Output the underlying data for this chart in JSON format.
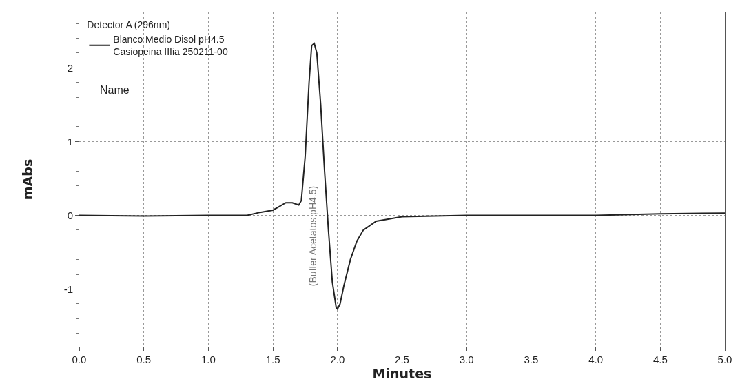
{
  "chart_data": {
    "type": "line",
    "xlabel": "Minutes",
    "ylabel": "mAbs",
    "legend_title": "Detector A (296nm)",
    "xlim": [
      0,
      5
    ],
    "xticks": [
      {
        "value": 0,
        "label": "0.0"
      },
      {
        "value": 0.5,
        "label": "0.5"
      },
      {
        "value": 1,
        "label": "1.0"
      },
      {
        "value": 1.5,
        "label": "1.5"
      },
      {
        "value": 2,
        "label": "2.0"
      },
      {
        "value": 2.5,
        "label": "2.5"
      },
      {
        "value": 3,
        "label": "3.0"
      },
      {
        "value": 3.5,
        "label": "3.5"
      },
      {
        "value": 4,
        "label": "4.0"
      },
      {
        "value": 4.5,
        "label": "4.5"
      },
      {
        "value": 5,
        "label": "5.0"
      }
    ],
    "ylim": [
      -1.78,
      2.75
    ],
    "yticks": [
      -1,
      0,
      1,
      2
    ],
    "grid": true,
    "legend": "top left",
    "line_style": "solid",
    "marker": "none",
    "x": [
      0,
      0.5,
      1.0,
      1.3,
      1.4,
      1.5,
      1.55,
      1.6,
      1.65,
      1.7,
      1.72,
      1.75,
      1.78,
      1.8,
      1.82,
      1.84,
      1.87,
      1.9,
      1.93,
      1.96,
      1.99,
      2.0,
      2.02,
      2.05,
      2.1,
      2.15,
      2.2,
      2.3,
      2.5,
      3.0,
      4.0,
      4.5,
      5.0
    ],
    "series": [
      {
        "name": "Blanco Medio Disol pH4.5\nCasiopeina IIIia 250211-00",
        "color": "#222222",
        "values": [
          0,
          -0.01,
          0,
          0,
          0.04,
          0.07,
          0.12,
          0.17,
          0.17,
          0.14,
          0.2,
          0.8,
          1.8,
          2.3,
          2.33,
          2.2,
          1.5,
          0.6,
          -0.2,
          -0.9,
          -1.25,
          -1.27,
          -1.2,
          -0.95,
          -0.6,
          -0.35,
          -0.2,
          -0.08,
          -0.02,
          0,
          0,
          0.02,
          0.03
        ]
      }
    ],
    "annotations": [
      "Name",
      "(Buffer Acetatos pH4.5)"
    ]
  }
}
